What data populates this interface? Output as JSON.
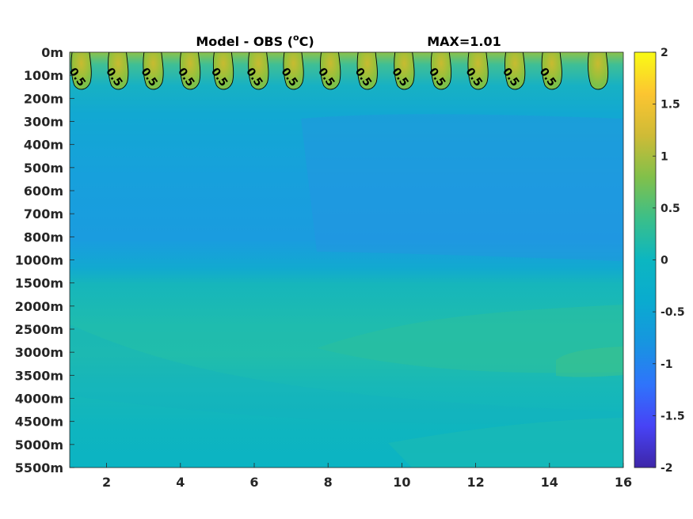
{
  "chart_data": {
    "type": "heatmap",
    "title_left": "Model - OBS (",
    "title_unit_sup": "o",
    "title_unit": "C)",
    "title_right": "MAX=1.01",
    "x_ticks": [
      "2",
      "4",
      "6",
      "8",
      "10",
      "12",
      "14",
      "16"
    ],
    "x_tick_values": [
      2,
      4,
      6,
      8,
      10,
      12,
      14,
      16
    ],
    "xlim": [
      1,
      16
    ],
    "y_ticks": [
      "0m",
      "100m",
      "200m",
      "300m",
      "400m",
      "500m",
      "600m",
      "700m",
      "800m",
      "1000m",
      "1500m",
      "2000m",
      "2500m",
      "3000m",
      "3500m",
      "4000m",
      "4500m",
      "5000m",
      "5500m"
    ],
    "colorbar": {
      "ticks": [
        "2",
        "1.5",
        "1",
        "0.5",
        "0",
        "-0.5",
        "-1",
        "-1.5",
        "-2"
      ],
      "tick_values": [
        2,
        1.5,
        1,
        0.5,
        0,
        -0.5,
        -1,
        -1.5,
        -2
      ],
      "range": [
        -2,
        2
      ],
      "colormap": "parula",
      "stops": [
        "#3e26a8",
        "#4743f6",
        "#2f74fb",
        "#1795e0",
        "#0aabcf",
        "#23bba1",
        "#54c36e",
        "#a6be37",
        "#e4ba36",
        "#fcd12f",
        "#f9fb15"
      ]
    },
    "contour_level": "0.5",
    "contour_labels": [
      "0.5",
      "0.5",
      "0.5",
      "0.5",
      "0.5",
      "0.5",
      "0.5",
      "0.5",
      "0.5",
      "0.5",
      "0.5",
      "0.5",
      "0.5",
      "0.5"
    ],
    "warm_patch_x": [
      1.3,
      2.3,
      3.25,
      4.25,
      5.15,
      6.1,
      7.05,
      8.05,
      9.05,
      10.05,
      11.05,
      12.05,
      13.05,
      14.05,
      15.3
    ],
    "field_depth_profile": [
      {
        "depth": "0m",
        "value": 0.55
      },
      {
        "depth": "100m",
        "value": 0.45
      },
      {
        "depth": "200m",
        "value": 0.05
      },
      {
        "depth": "300m",
        "value": -0.05
      },
      {
        "depth": "400m",
        "value": -0.1
      },
      {
        "depth": "500m",
        "value": -0.15
      },
      {
        "depth": "600m",
        "value": -0.18
      },
      {
        "depth": "700m",
        "value": -0.2
      },
      {
        "depth": "800m",
        "value": -0.2
      },
      {
        "depth": "1000m",
        "value": -0.1
      },
      {
        "depth": "1500m",
        "value": 0.05
      },
      {
        "depth": "2000m",
        "value": 0.15
      },
      {
        "depth": "2500m",
        "value": 0.15
      },
      {
        "depth": "3000m",
        "value": 0.2
      },
      {
        "depth": "3500m",
        "value": 0.12
      },
      {
        "depth": "4000m",
        "value": 0.08
      },
      {
        "depth": "4500m",
        "value": 0.05
      },
      {
        "depth": "5000m",
        "value": 0.03
      },
      {
        "depth": "5500m",
        "value": 0.02
      }
    ]
  }
}
